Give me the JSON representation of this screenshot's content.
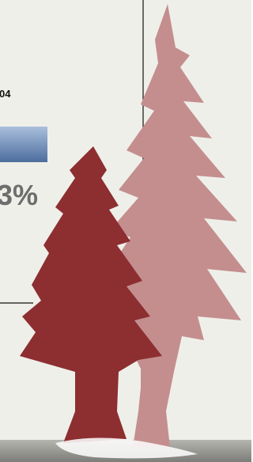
{
  "labels": {
    "year_fragment": "04",
    "percent_fragment": "3%"
  }
}
